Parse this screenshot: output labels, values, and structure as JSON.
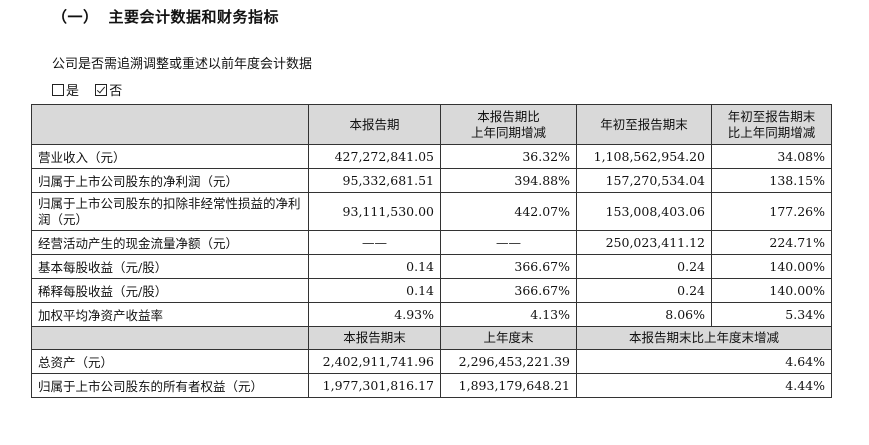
{
  "section": {
    "number": "（一）",
    "title": "主要会计数据和财务指标"
  },
  "restate": {
    "question": "公司是否需追溯调整或重述以前年度会计数据",
    "options": [
      {
        "label": "是",
        "checked": false
      },
      {
        "label": "否",
        "checked": true
      }
    ]
  },
  "table1": {
    "headers": [
      "",
      "本报告期",
      "本报告期比\n上年同期增减",
      "年初至报告期末",
      "年初至报告期末\n比上年同期增减"
    ],
    "rows": [
      {
        "label": "营业收入（元）",
        "values": [
          "427,272,841.05",
          "36.32%",
          "1,108,562,954.20",
          "34.08%"
        ]
      },
      {
        "label": "归属于上市公司股东的净利润（元）",
        "values": [
          "95,332,681.51",
          "394.88%",
          "157,270,534.04",
          "138.15%"
        ]
      },
      {
        "label": "归属于上市公司股东的扣除非经常性损益的净利润（元）",
        "values": [
          "93,111,530.00",
          "442.07%",
          "153,008,403.06",
          "177.26%"
        ]
      },
      {
        "label": "经营活动产生的现金流量净额（元）",
        "values": [
          "——",
          "——",
          "250,023,411.12",
          "224.71%"
        ]
      },
      {
        "label": "基本每股收益（元/股）",
        "values": [
          "0.14",
          "366.67%",
          "0.24",
          "140.00%"
        ]
      },
      {
        "label": "稀释每股收益（元/股）",
        "values": [
          "0.14",
          "366.67%",
          "0.24",
          "140.00%"
        ]
      },
      {
        "label": "加权平均净资产收益率",
        "values": [
          "4.93%",
          "4.13%",
          "8.06%",
          "5.34%"
        ]
      }
    ]
  },
  "table2": {
    "headers": [
      "",
      "本报告期末",
      "上年度末",
      "本报告期末比上年度末增减"
    ],
    "rows": [
      {
        "label": "总资产（元）",
        "values": [
          "2,402,911,741.96",
          "2,296,453,221.39",
          "4.64%"
        ]
      },
      {
        "label": "归属于上市公司股东的所有者权益（元）",
        "values": [
          "1,977,301,816.17",
          "1,893,179,648.21",
          "4.44%"
        ]
      }
    ]
  }
}
